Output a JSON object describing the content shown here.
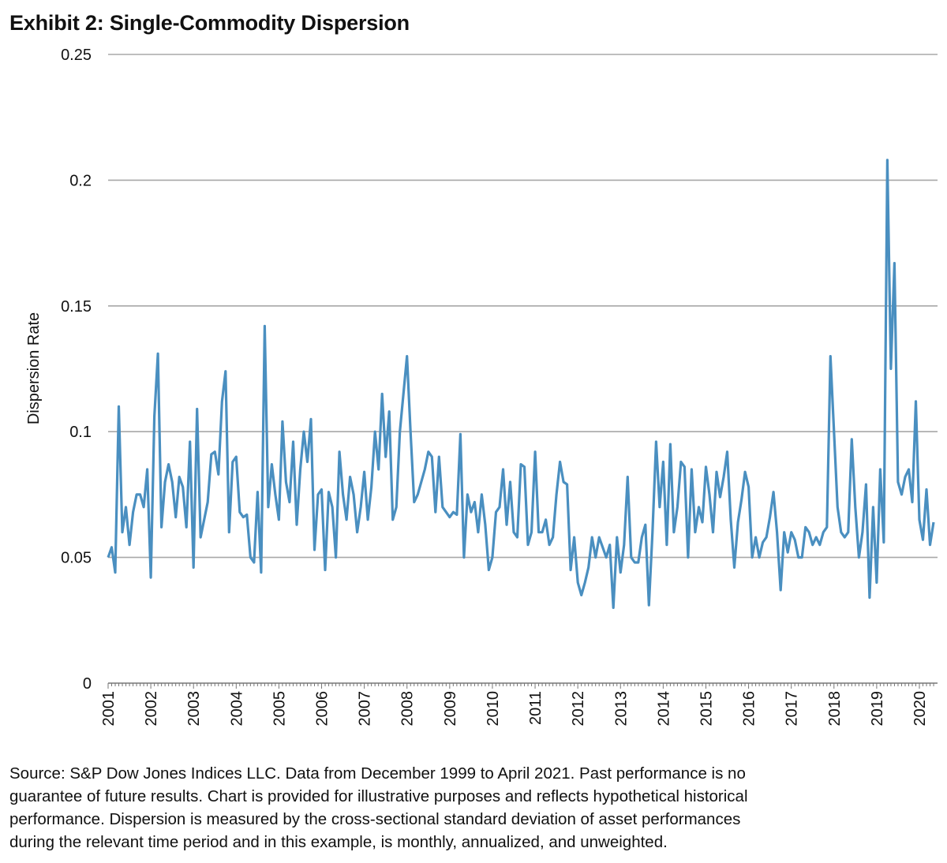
{
  "title": "Exhibit 2: Single-Commodity Dispersion",
  "footer": [
    "Source: S&P Dow Jones Indices LLC.  Data from December 1999 to April 2021.  Past performance is no",
    "guarantee of future results.  Chart is provided for illustrative purposes and reflects hypothetical historical",
    "performance.  Dispersion is measured by the cross-sectional standard deviation of asset performances",
    "during the relevant time period and in this example, is monthly, annualized, and unweighted."
  ],
  "chart_data": {
    "type": "line",
    "title": "Exhibit 2: Single-Commodity Dispersion",
    "xlabel": "",
    "ylabel": "Dispersion Rate",
    "ylim": [
      0,
      0.25
    ],
    "yticks": [
      "0",
      "0.05",
      "0.1",
      "0.15",
      "0.2",
      "0.25"
    ],
    "xticks": [
      "2001",
      "2002",
      "2003",
      "2004",
      "2005",
      "2006",
      "2007",
      "2008",
      "2009",
      "2010",
      "2011",
      "2012",
      "2013",
      "2014",
      "2015",
      "2016",
      "2017",
      "2018",
      "2019",
      "2020"
    ],
    "grid": "horizontal",
    "line_color": "#4a8fc0",
    "start": "2001-01",
    "frequency": "monthly",
    "series": [
      {
        "values": [
          0.05,
          0.054,
          0.044,
          0.11,
          0.06,
          0.07,
          0.055,
          0.068,
          0.075,
          0.075,
          0.07,
          0.085,
          0.042,
          0.106,
          0.131,
          0.062,
          0.08,
          0.087,
          0.08,
          0.066,
          0.082,
          0.078,
          0.062,
          0.096,
          0.046,
          0.109,
          0.058,
          0.065,
          0.072,
          0.091,
          0.092,
          0.083,
          0.112,
          0.124,
          0.06,
          0.088,
          0.09,
          0.068,
          0.066,
          0.067,
          0.05,
          0.048,
          0.076,
          0.044,
          0.142,
          0.07,
          0.087,
          0.075,
          0.065,
          0.104,
          0.08,
          0.072,
          0.096,
          0.063,
          0.085,
          0.1,
          0.088,
          0.105,
          0.053,
          0.075,
          0.077,
          0.045,
          0.076,
          0.07,
          0.05,
          0.092,
          0.075,
          0.065,
          0.082,
          0.075,
          0.06,
          0.07,
          0.084,
          0.065,
          0.078,
          0.1,
          0.085,
          0.115,
          0.09,
          0.108,
          0.065,
          0.07,
          0.1,
          0.115,
          0.13,
          0.1,
          0.072,
          0.075,
          0.08,
          0.085,
          0.092,
          0.09,
          0.068,
          0.09,
          0.07,
          0.068,
          0.066,
          0.068,
          0.067,
          0.099,
          0.05,
          0.075,
          0.068,
          0.072,
          0.06,
          0.075,
          0.063,
          0.045,
          0.05,
          0.068,
          0.07,
          0.085,
          0.063,
          0.08,
          0.06,
          0.058,
          0.087,
          0.086,
          0.055,
          0.06,
          0.092,
          0.06,
          0.06,
          0.065,
          0.055,
          0.058,
          0.075,
          0.088,
          0.08,
          0.079,
          0.045,
          0.058,
          0.04,
          0.035,
          0.04,
          0.046,
          0.058,
          0.05,
          0.058,
          0.054,
          0.05,
          0.055,
          0.03,
          0.058,
          0.044,
          0.055,
          0.082,
          0.05,
          0.048,
          0.048,
          0.058,
          0.063,
          0.031,
          0.06,
          0.096,
          0.07,
          0.088,
          0.055,
          0.095,
          0.06,
          0.07,
          0.088,
          0.086,
          0.05,
          0.085,
          0.06,
          0.07,
          0.064,
          0.086,
          0.075,
          0.06,
          0.084,
          0.074,
          0.082,
          0.092,
          0.065,
          0.046,
          0.064,
          0.073,
          0.084,
          0.078,
          0.05,
          0.058,
          0.05,
          0.056,
          0.058,
          0.066,
          0.076,
          0.06,
          0.037,
          0.06,
          0.052,
          0.06,
          0.057,
          0.05,
          0.05,
          0.062,
          0.06,
          0.055,
          0.058,
          0.055,
          0.06,
          0.062,
          0.13,
          0.1,
          0.07,
          0.06,
          0.058,
          0.06,
          0.097,
          0.07,
          0.05,
          0.06,
          0.079,
          0.034,
          0.07,
          0.04,
          0.085,
          0.056,
          0.208,
          0.125,
          0.167,
          0.08,
          0.075,
          0.082,
          0.085,
          0.072,
          0.112,
          0.065,
          0.057,
          0.077,
          0.055,
          0.064
        ]
      }
    ]
  }
}
